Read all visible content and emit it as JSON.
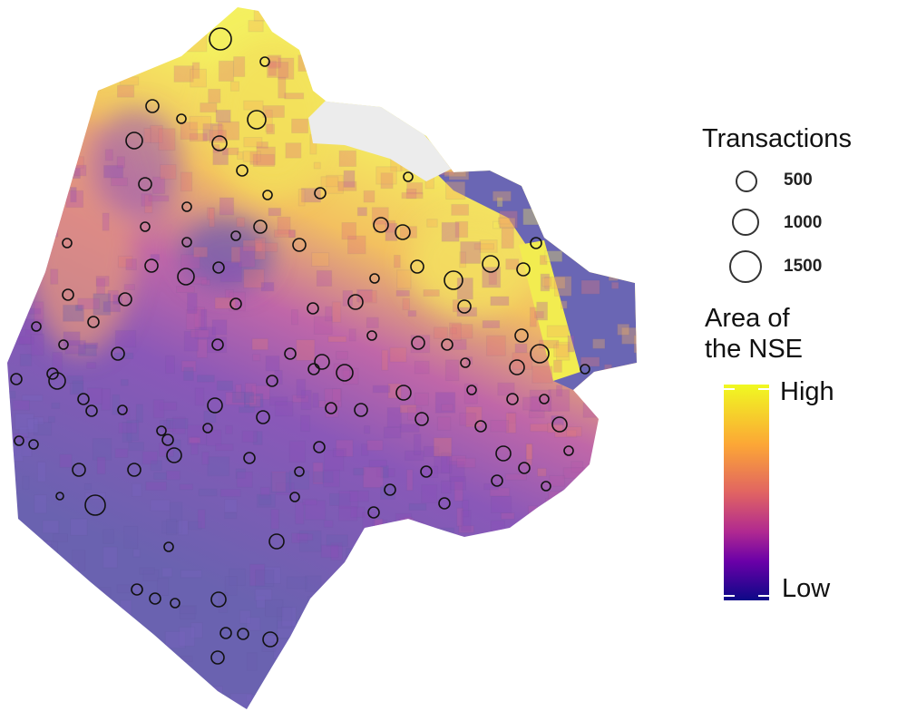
{
  "legend": {
    "transactions_title": "Transactions",
    "transactions_sizes": [
      {
        "label": "500",
        "value": 500
      },
      {
        "label": "1000",
        "value": 1000
      },
      {
        "label": "1500",
        "value": 1500
      }
    ],
    "nse_title_line1": "Area of",
    "nse_title_line2": "the NSE",
    "nse_high": "High",
    "nse_low": "Low",
    "colormap": [
      "#0d0887",
      "#6a00a8",
      "#b12a90",
      "#e16462",
      "#fca636",
      "#f0f921"
    ]
  },
  "map": {
    "water_color": "#ececec",
    "circle_color": "#111111"
  }
}
